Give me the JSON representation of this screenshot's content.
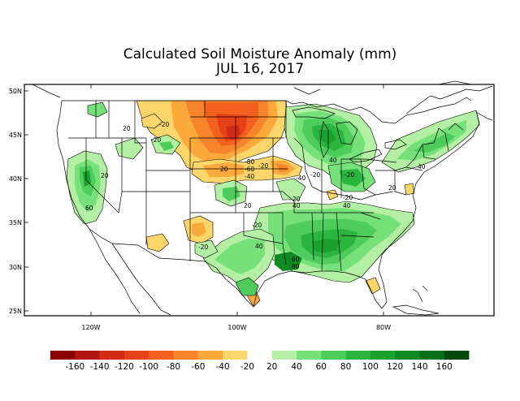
{
  "title": "Calculated Soil Moisture Anomaly (mm)",
  "date": "JUL 16, 2017",
  "lat_labels": [
    "50N",
    "45N",
    "40N",
    "35N",
    "30N",
    "25N"
  ],
  "lon_labels": [
    "120W",
    "100W",
    "80W"
  ],
  "colorbar": {
    "labels": [
      "-160",
      "-140",
      "-120",
      "-100",
      "-80",
      "-60",
      "-40",
      "-20",
      "20",
      "40",
      "60",
      "80",
      "100",
      "120",
      "140",
      "160"
    ],
    "colors": [
      "#8b0000",
      "#b0160f",
      "#d42a16",
      "#e8411a",
      "#f2621e",
      "#f7842a",
      "#fba93b",
      "#fcd66a",
      "#ffffff",
      "#b4f0a4",
      "#76e07a",
      "#4dcc5c",
      "#2ab63e",
      "#19a02e",
      "#0e8a22",
      "#087016",
      "#034a0a"
    ]
  },
  "contour_labels": [
    {
      "id": "c1",
      "text": "20"
    },
    {
      "id": "c2",
      "text": "-20"
    },
    {
      "id": "c3",
      "text": "-20"
    },
    {
      "id": "c4",
      "text": "20"
    },
    {
      "id": "c5",
      "text": "60"
    },
    {
      "id": "c6",
      "text": "-80"
    },
    {
      "id": "c7",
      "text": "-60"
    },
    {
      "id": "c8",
      "text": "-40"
    },
    {
      "id": "c9",
      "text": "-20"
    },
    {
      "id": "c10",
      "text": "-40"
    },
    {
      "id": "c11",
      "text": "-20"
    },
    {
      "id": "c12",
      "text": "20"
    },
    {
      "id": "c13",
      "text": "40"
    },
    {
      "id": "c14",
      "text": "-20"
    },
    {
      "id": "c15",
      "text": "-20"
    },
    {
      "id": "c16",
      "text": "20"
    },
    {
      "id": "c17",
      "text": "40"
    },
    {
      "id": "c18",
      "text": "20"
    },
    {
      "id": "c19",
      "text": "40"
    },
    {
      "id": "c20",
      "text": "40"
    },
    {
      "id": "c21",
      "text": "-20"
    },
    {
      "id": "c22",
      "text": "40"
    },
    {
      "id": "c23",
      "text": "60"
    },
    {
      "id": "c24",
      "text": "80"
    },
    {
      "id": "c25",
      "text": "20"
    },
    {
      "id": "c26",
      "text": "-20"
    }
  ]
}
